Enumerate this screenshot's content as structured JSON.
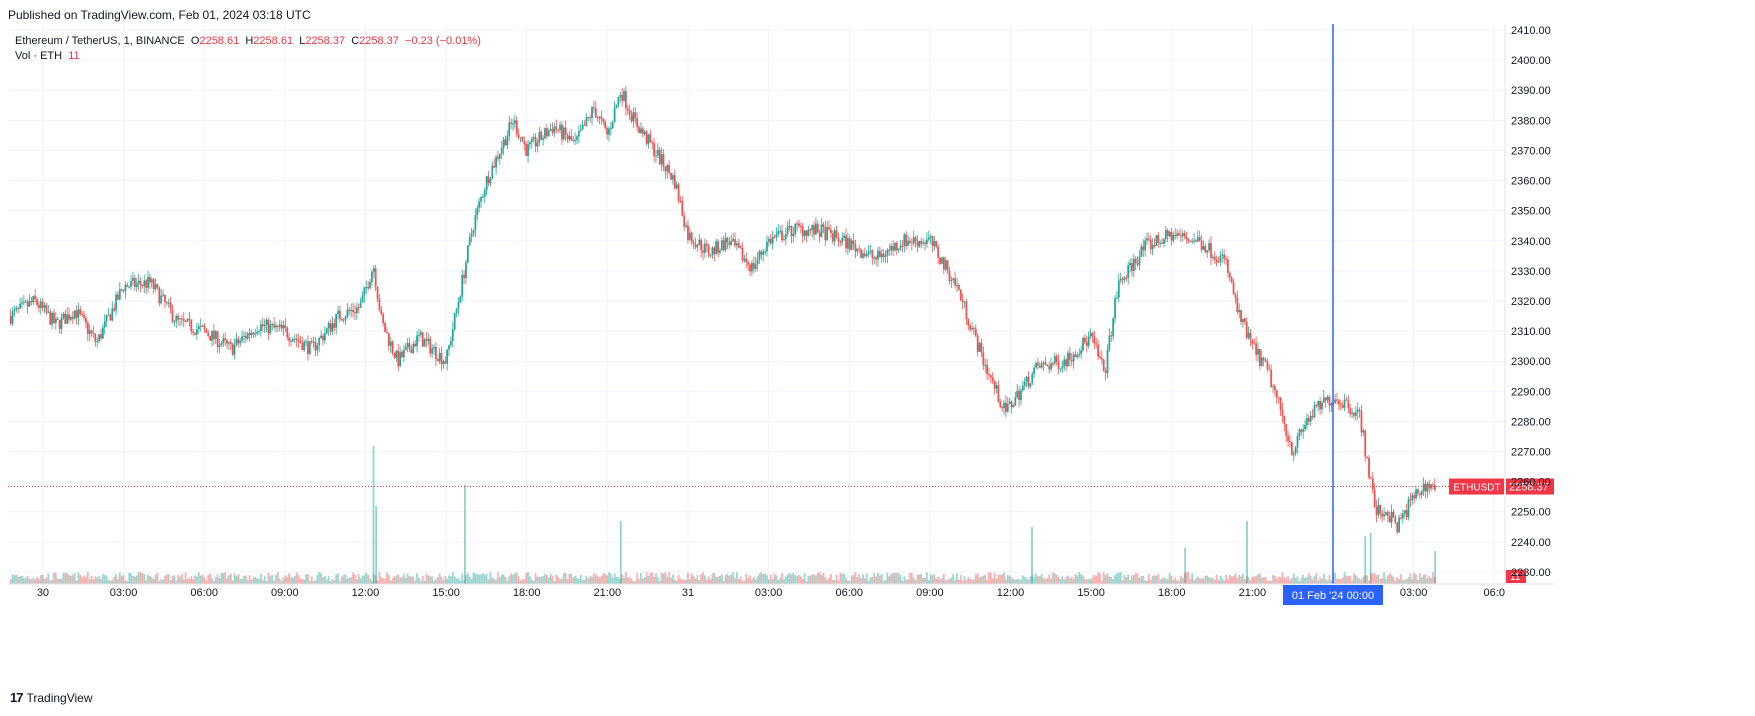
{
  "published": "Published on TradingView.com, Feb 01, 2024 03:18 UTC",
  "legend": {
    "symbol": "Ethereum / TetherUS, 1, BINANCE",
    "o_label": "O",
    "o": "2258.61",
    "h_label": "H",
    "h": "2258.61",
    "l_label": "L",
    "l": "2258.37",
    "c_label": "C",
    "c": "2258.37",
    "change": "−0.23 (−0.01%)",
    "vol_label": "Vol · ETH",
    "vol": "11"
  },
  "footer": {
    "brand": "TradingView",
    "logo_glyph": "17"
  },
  "colors": {
    "up": "#26a69a",
    "down": "#ef5350",
    "accent": "#2962ff",
    "last": "#f23645",
    "grid": "#f0f3fa",
    "text": "#131722"
  },
  "chart_data": {
    "type": "candlestick",
    "symbol": "ETHUSDT",
    "interval": "1",
    "last_price": 2258.37,
    "last_volume": 11,
    "ylim": [
      2226,
      2412
    ],
    "y_ticks": [
      "2410.00",
      "2400.00",
      "2390.00",
      "2380.00",
      "2370.00",
      "2360.00",
      "2350.00",
      "2340.00",
      "2330.00",
      "2320.00",
      "2310.00",
      "2300.00",
      "2290.00",
      "2280.00",
      "2270.00",
      "2260.00",
      "2250.00",
      "2240.00",
      "2230.00"
    ],
    "y_tick_values": [
      2410,
      2400,
      2390,
      2380,
      2370,
      2360,
      2350,
      2340,
      2330,
      2320,
      2310,
      2300,
      2290,
      2280,
      2270,
      2260,
      2250,
      2240,
      2230
    ],
    "x_ticks": [
      "30",
      "03:00",
      "06:00",
      "09:00",
      "12:00",
      "15:00",
      "18:00",
      "21:00",
      "31",
      "03:00",
      "06:00",
      "09:00",
      "12:00",
      "15:00",
      "18:00",
      "21:00",
      "03:00",
      "06:0"
    ],
    "x_tick_hours": [
      0,
      3,
      6,
      9,
      12,
      15,
      18,
      21,
      24,
      27,
      30,
      33,
      36,
      39,
      42,
      45,
      51,
      54
    ],
    "x_range_hours": [
      -1.3,
      54.4
    ],
    "crosshair": {
      "hour": 48,
      "label": "01 Feb '24   00:00"
    },
    "symbol_tag": "ETHUSDT",
    "price_tag": "2258.37",
    "volume_tag": "11",
    "price_path": [
      [
        -1.2,
        2315
      ],
      [
        -0.3,
        2320
      ],
      [
        0.5,
        2312
      ],
      [
        1.2,
        2317
      ],
      [
        2.0,
        2306
      ],
      [
        3.0,
        2325
      ],
      [
        4.0,
        2326
      ],
      [
        5.0,
        2313
      ],
      [
        6.0,
        2310
      ],
      [
        7.0,
        2304
      ],
      [
        8.0,
        2312
      ],
      [
        9.0,
        2310
      ],
      [
        10.0,
        2304
      ],
      [
        11.0,
        2315
      ],
      [
        11.8,
        2318
      ],
      [
        12.3,
        2332
      ],
      [
        12.6,
        2313
      ],
      [
        13.2,
        2300
      ],
      [
        14.0,
        2308
      ],
      [
        15.0,
        2300
      ],
      [
        15.5,
        2322
      ],
      [
        16.0,
        2345
      ],
      [
        16.5,
        2360
      ],
      [
        17.5,
        2380
      ],
      [
        18.0,
        2370
      ],
      [
        19.0,
        2378
      ],
      [
        19.8,
        2372
      ],
      [
        20.5,
        2384
      ],
      [
        21.0,
        2375
      ],
      [
        21.5,
        2390
      ],
      [
        22.0,
        2380
      ],
      [
        23.5,
        2360
      ],
      [
        24.0,
        2342
      ],
      [
        24.8,
        2336
      ],
      [
        25.5,
        2340
      ],
      [
        26.4,
        2331
      ],
      [
        27.0,
        2340
      ],
      [
        28.0,
        2344
      ],
      [
        29.0,
        2343
      ],
      [
        30.0,
        2339
      ],
      [
        31.0,
        2334
      ],
      [
        32.0,
        2340
      ],
      [
        33.0,
        2340
      ],
      [
        34.0,
        2325
      ],
      [
        35.0,
        2300
      ],
      [
        35.8,
        2283
      ],
      [
        37.0,
        2298
      ],
      [
        38.0,
        2300
      ],
      [
        39.0,
        2308
      ],
      [
        39.5,
        2296
      ],
      [
        40.0,
        2325
      ],
      [
        41.0,
        2338
      ],
      [
        42.0,
        2342
      ],
      [
        43.0,
        2340
      ],
      [
        44.0,
        2333
      ],
      [
        44.5,
        2315
      ],
      [
        45.0,
        2305
      ],
      [
        45.6,
        2296
      ],
      [
        46.0,
        2285
      ],
      [
        46.5,
        2270
      ],
      [
        47.0,
        2280
      ],
      [
        47.5,
        2285
      ],
      [
        48.0,
        2288
      ],
      [
        48.5,
        2286
      ],
      [
        49.0,
        2282
      ],
      [
        49.3,
        2265
      ],
      [
        49.6,
        2250
      ],
      [
        50.0,
        2250
      ],
      [
        50.4,
        2245
      ],
      [
        51.0,
        2255
      ],
      [
        51.5,
        2259
      ],
      [
        51.8,
        2258.37
      ]
    ],
    "volume_spikes": [
      [
        12.3,
        46
      ],
      [
        12.4,
        26
      ],
      [
        15.7,
        33
      ],
      [
        21.5,
        21
      ],
      [
        36.8,
        19
      ],
      [
        42.5,
        12
      ],
      [
        44.8,
        21
      ],
      [
        49.2,
        16
      ],
      [
        49.4,
        17
      ],
      [
        51.8,
        11
      ]
    ]
  }
}
